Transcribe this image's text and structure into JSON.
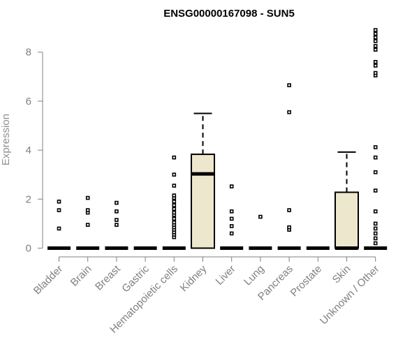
{
  "chart_data": {
    "type": "box",
    "title": "ENSG00000167098 - SUN5",
    "xlabel": "",
    "ylabel": "Expression",
    "ylim": [
      0,
      9
    ],
    "yticks": [
      0,
      2,
      4,
      6,
      8
    ],
    "box_color": "#ede7cd",
    "categories": [
      "Bladder",
      "Brain",
      "Breast",
      "Gastric",
      "Hematopoietic cells",
      "Kidney",
      "Liver",
      "Lung",
      "Pancreas",
      "Prostate",
      "Skin",
      "Unknown / Other"
    ],
    "boxes": [
      {
        "category": "Bladder",
        "q1": 0,
        "median": 0,
        "q3": 0,
        "whisker_low": 0,
        "whisker_high": 0,
        "outliers": [
          0.8,
          1.55,
          1.9
        ]
      },
      {
        "category": "Brain",
        "q1": 0,
        "median": 0,
        "q3": 0,
        "whisker_low": 0,
        "whisker_high": 0,
        "outliers": [
          0.95,
          1.45,
          1.55,
          2.05
        ]
      },
      {
        "category": "Breast",
        "q1": 0,
        "median": 0,
        "q3": 0,
        "whisker_low": 0,
        "whisker_high": 0,
        "outliers": [
          0.95,
          1.15,
          1.5,
          1.85
        ]
      },
      {
        "category": "Gastric",
        "q1": 0,
        "median": 0,
        "q3": 0,
        "whisker_low": 0,
        "whisker_high": 0,
        "outliers": []
      },
      {
        "category": "Hematopoietic cells",
        "q1": 0,
        "median": 0,
        "q3": 0,
        "whisker_low": 0,
        "whisker_high": 0,
        "outliers": [
          0.45,
          0.55,
          0.65,
          0.75,
          0.85,
          0.95,
          1.05,
          1.2,
          1.35,
          1.45,
          1.6,
          1.75,
          1.9,
          2.05,
          2.15,
          2.55,
          3.0,
          3.7
        ]
      },
      {
        "category": "Kidney",
        "q1": 0,
        "median": 3.03,
        "q3": 3.83,
        "whisker_low": 0,
        "whisker_high": 5.5,
        "outliers": []
      },
      {
        "category": "Liver",
        "q1": 0,
        "median": 0,
        "q3": 0,
        "whisker_low": 0,
        "whisker_high": 0,
        "outliers": [
          0.6,
          0.9,
          1.2,
          1.5,
          2.52
        ]
      },
      {
        "category": "Lung",
        "q1": 0,
        "median": 0,
        "q3": 0,
        "whisker_low": 0,
        "whisker_high": 0,
        "outliers": [
          1.28
        ]
      },
      {
        "category": "Pancreas",
        "q1": 0,
        "median": 0,
        "q3": 0,
        "whisker_low": 0,
        "whisker_high": 0,
        "outliers": [
          0.75,
          0.85,
          1.55,
          5.55,
          6.65
        ]
      },
      {
        "category": "Prostate",
        "q1": 0,
        "median": 0,
        "q3": 0,
        "whisker_low": 0,
        "whisker_high": 0,
        "outliers": []
      },
      {
        "category": "Skin",
        "q1": 0,
        "median": 0,
        "q3": 2.28,
        "whisker_low": 0,
        "whisker_high": 3.92,
        "outliers": []
      },
      {
        "category": "Unknown / Other",
        "q1": 0,
        "median": 0,
        "q3": 0,
        "whisker_low": 0,
        "whisker_high": 0,
        "outliers": [
          0.2,
          0.4,
          0.6,
          0.8,
          1.0,
          1.5,
          2.35,
          3.1,
          3.7,
          4.12,
          7.05,
          7.15,
          7.45,
          7.6,
          8.1,
          8.25,
          8.45,
          8.6,
          8.75,
          8.9
        ]
      }
    ]
  }
}
